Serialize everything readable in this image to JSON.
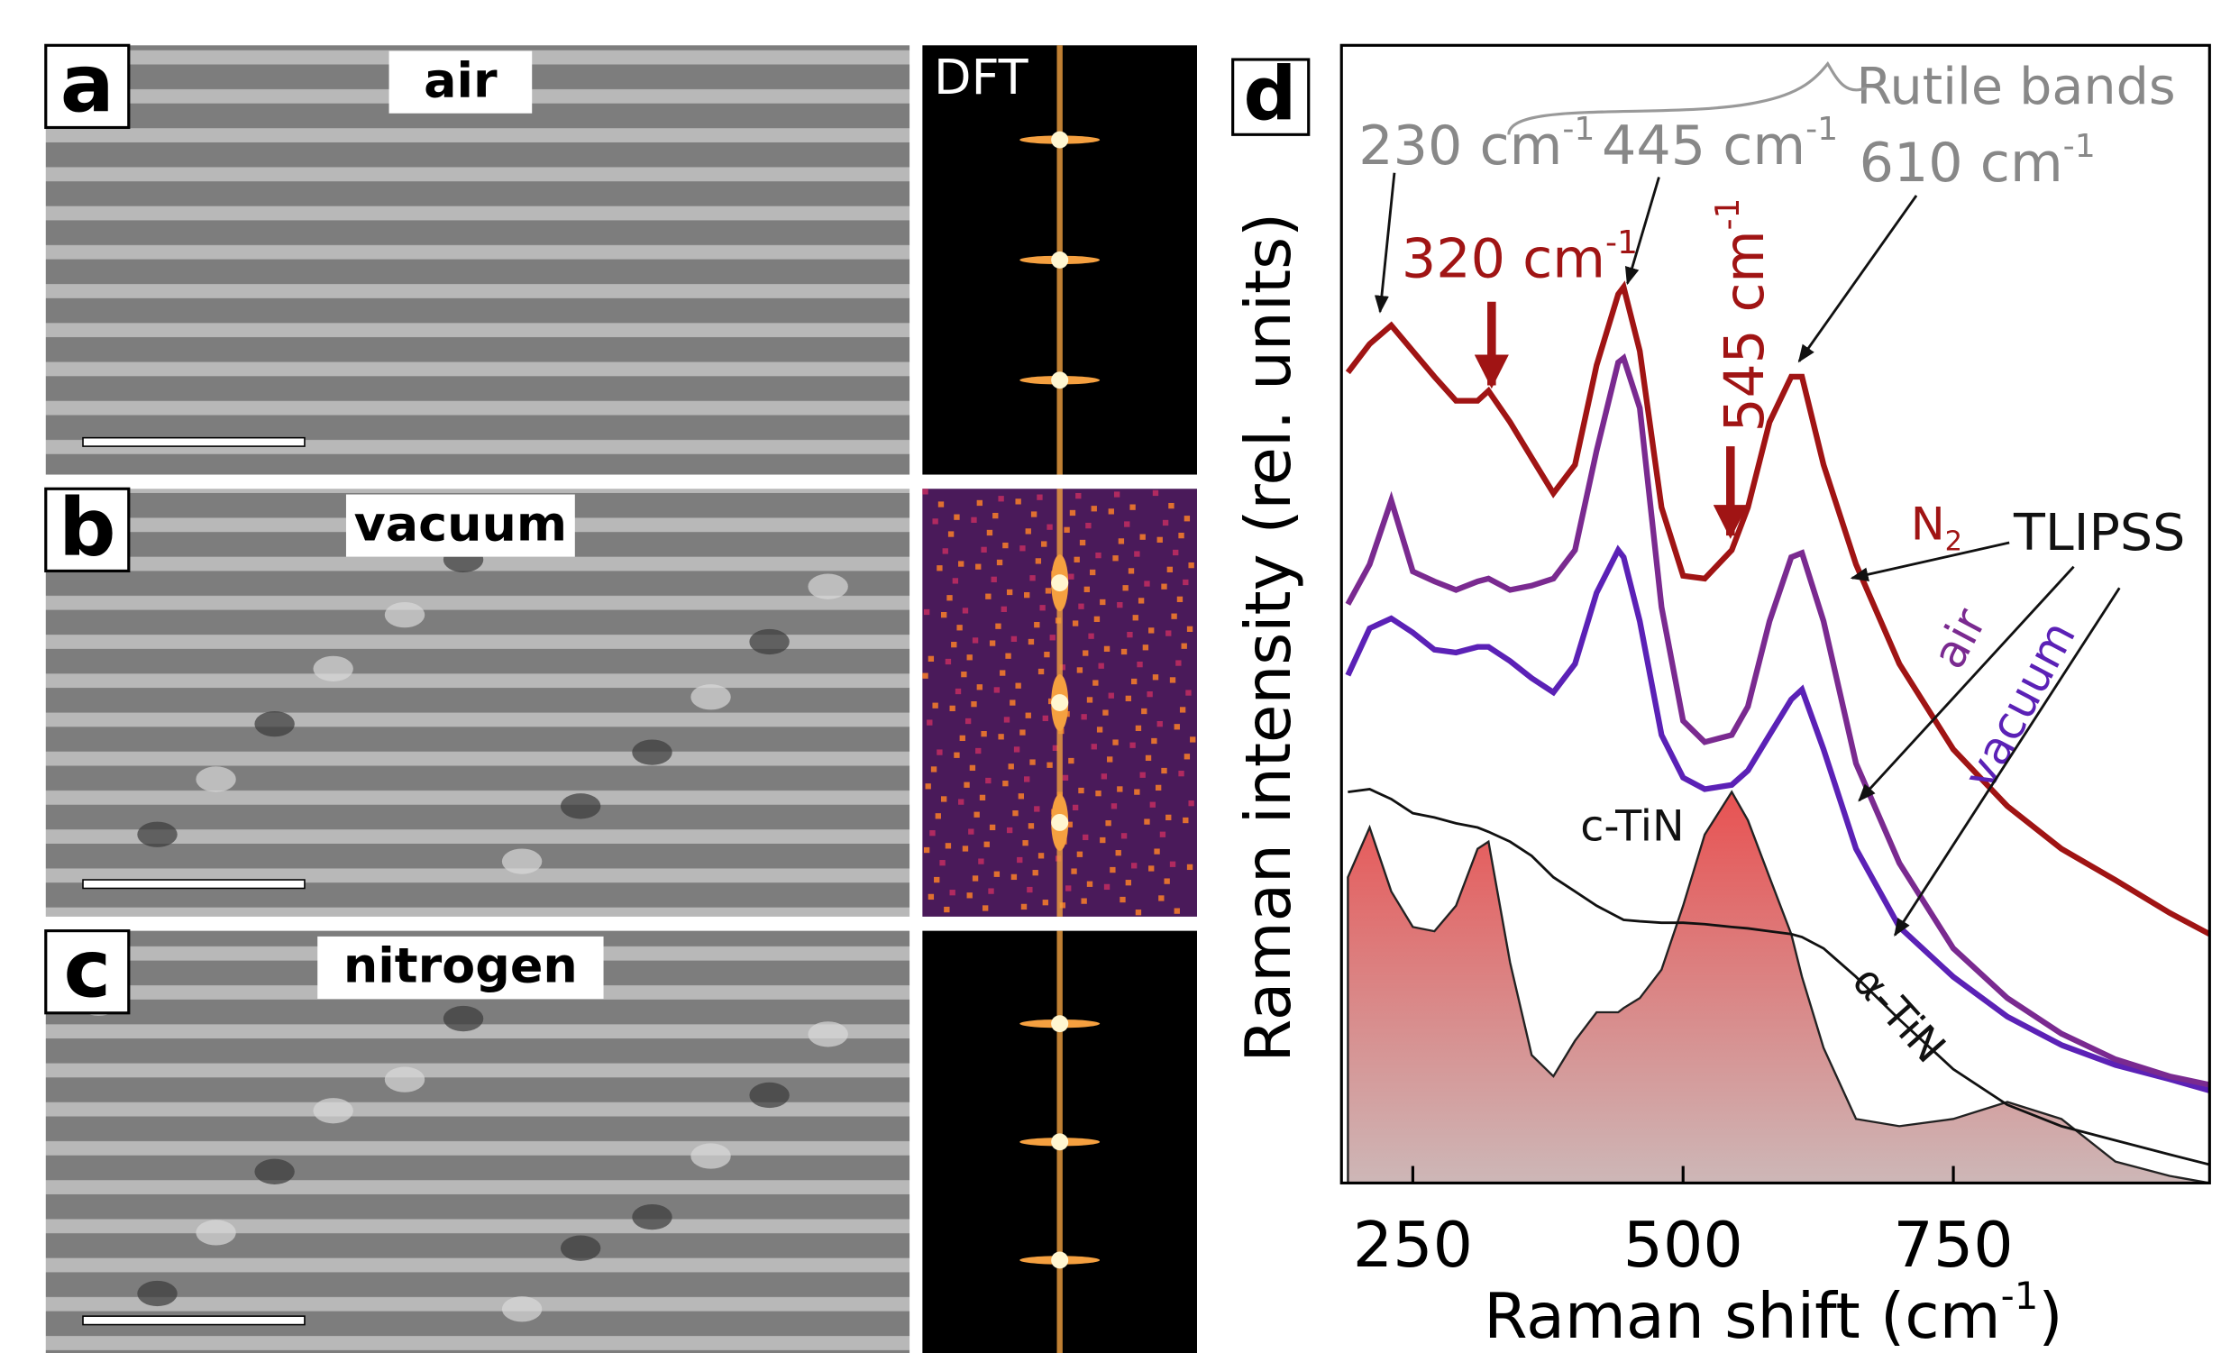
{
  "panels": [
    {
      "letter": "a",
      "label": "air"
    },
    {
      "letter": "b",
      "label": "vacuum"
    },
    {
      "letter": "c",
      "label": "nitrogen"
    }
  ],
  "dft_label": "DFT",
  "chart_data": {
    "type": "line",
    "letter": "d",
    "x_label": {
      "text": "Raman shift (cm",
      "sup": "-1",
      "after": ")"
    },
    "y_label": "Raman intensity (rel. units)",
    "x": [
      190,
      210,
      230,
      250,
      270,
      290,
      310,
      320,
      340,
      360,
      380,
      400,
      420,
      440,
      445,
      460,
      480,
      500,
      520,
      545,
      560,
      580,
      600,
      610,
      630,
      660,
      700,
      750,
      800,
      850,
      900,
      950,
      987
    ],
    "xlim": [
      184,
      987
    ],
    "xticks": [
      250,
      500,
      750
    ],
    "ylim": [
      0,
      800
    ],
    "series": [
      {
        "name": "N",
        "sub": "2",
        "color": "#a01414",
        "values": [
          570,
          590,
          603,
          585,
          567,
          550,
          550,
          557,
          535,
          510,
          485,
          505,
          575,
          625,
          630,
          585,
          475,
          427,
          425,
          445,
          475,
          535,
          567,
          567,
          505,
          435,
          365,
          305,
          265,
          235,
          213,
          190,
          175
        ]
      },
      {
        "name": "air",
        "color": "#7a2a90",
        "values": [
          407,
          435,
          480,
          430,
          423,
          417,
          423,
          425,
          417,
          420,
          425,
          445,
          515,
          577,
          580,
          545,
          405,
          325,
          310,
          315,
          335,
          395,
          440,
          443,
          395,
          295,
          225,
          165,
          130,
          105,
          87,
          75,
          69
        ]
      },
      {
        "name": "vacuum",
        "color": "#5b21b6",
        "values": [
          357,
          390,
          397,
          387,
          375,
          373,
          377,
          377,
          367,
          355,
          345,
          365,
          415,
          445,
          440,
          395,
          315,
          285,
          277,
          280,
          290,
          315,
          340,
          347,
          305,
          235,
          180,
          145,
          117,
          97,
          83,
          73,
          65
        ]
      },
      {
        "name": "c-TiN",
        "color": "#e05a5a",
        "fill": true,
        "values": [
          215,
          250,
          205,
          180,
          177,
          195,
          235,
          240,
          155,
          90,
          75,
          100,
          120,
          120,
          123,
          130,
          150,
          195,
          245,
          275,
          255,
          215,
          175,
          145,
          95,
          45,
          40,
          45,
          57,
          45,
          15,
          5,
          0
        ]
      },
      {
        "name": "α-TiN",
        "color": "#111111",
        "values": [
          275,
          277,
          270,
          260,
          257,
          253,
          250,
          247,
          240,
          230,
          215,
          205,
          195,
          187,
          185,
          184,
          183,
          183,
          182,
          180,
          179,
          177,
          175,
          173,
          165,
          145,
          115,
          80,
          55,
          40,
          30,
          20,
          13
        ]
      }
    ],
    "annotations": [
      {
        "text": "230 cm",
        "sup": "-1",
        "color": "#888888"
      },
      {
        "text": "445 cm",
        "sup": "-1",
        "color": "#888888"
      },
      {
        "text": "610 cm",
        "sup": "-1",
        "color": "#888888"
      },
      {
        "text": "320 cm",
        "sup": "-1",
        "color": "#a01414"
      },
      {
        "text": "545 cm",
        "sup": "-1",
        "color": "#a01414"
      },
      {
        "text": "Rutile bands",
        "color": "#888888"
      },
      {
        "text": "TLIPSS",
        "color": "#111111"
      }
    ]
  }
}
